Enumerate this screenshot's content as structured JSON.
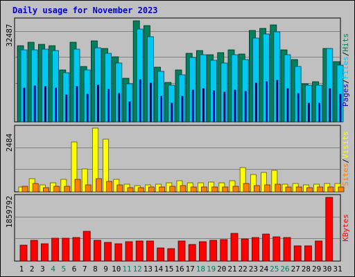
{
  "title": "Daily usage for November 2023",
  "colors": {
    "title": "#0000cc",
    "hits": "#00805c",
    "files": "#00c8f0",
    "pages": "#0000c8",
    "visits": "#ffff00",
    "sites": "#ff8000",
    "kbytes": "#ff0000",
    "weekend_label": "#00805c",
    "plot_bg": "#c0c0c0",
    "grid": "#808080"
  },
  "chart_data": {
    "type": "bar",
    "categories": [
      "1",
      "2",
      "3",
      "4",
      "5",
      "6",
      "7",
      "8",
      "9",
      "10",
      "11",
      "12",
      "13",
      "14",
      "15",
      "16",
      "17",
      "18",
      "19",
      "20",
      "21",
      "22",
      "23",
      "24",
      "25",
      "26",
      "27",
      "28",
      "29",
      "30",
      "31"
    ],
    "weekend_days": [
      "4",
      "5",
      "11",
      "12",
      "18",
      "19",
      "25",
      "26"
    ],
    "grid": true,
    "panels": [
      {
        "name": "hits-files-pages",
        "y_tick_label": "32487",
        "ylim": [
          0,
          39000
        ],
        "legend": [
          "Pages",
          "/",
          "Files",
          "/",
          "Hits"
        ],
        "legend_placement": "right",
        "series": [
          {
            "name": "Hits",
            "values": [
              29500,
              30600,
              29900,
              29300,
              20000,
              30800,
              21300,
              31200,
              28200,
              25000,
              16800,
              39000,
              37100,
              21200,
              15100,
              20000,
              26400,
              27500,
              25900,
              26600,
              27700,
              26300,
              35200,
              36100,
              37400,
              27700,
              24000,
              14600,
              15500,
              28400,
              23300
            ]
          },
          {
            "name": "Files",
            "values": [
              27700,
              27700,
              28100,
              27500,
              18900,
              28000,
              20000,
              28500,
              26500,
              22700,
              14600,
              35700,
              32900,
              19400,
              14200,
              18200,
              24800,
              25900,
              23900,
              22700,
              25800,
              24000,
              32200,
              33800,
              34700,
              25900,
              21300,
              14200,
              14100,
              28300,
              21800
            ]
          },
          {
            "name": "Pages",
            "values": [
              13100,
              14000,
              13500,
              13100,
              10400,
              13500,
              10600,
              14200,
              12600,
              11000,
              7800,
              16200,
              15000,
              9900,
              7300,
              9800,
              12300,
              12800,
              12100,
              11500,
              12200,
              11800,
              15000,
              15600,
              15900,
              12700,
              11000,
              7300,
              7100,
              12900,
              10800
            ]
          }
        ]
      },
      {
        "name": "visits-sites",
        "y_tick_label": "2484",
        "ylim": [
          0,
          2830
        ],
        "legend": [
          "Sites",
          "/",
          "Visits"
        ],
        "legend_placement": "right",
        "series": [
          {
            "name": "Visits",
            "values": [
              230,
              590,
              310,
              400,
              560,
              2200,
              1010,
              2840,
              2350,
              560,
              340,
              280,
              320,
              340,
              410,
              500,
              390,
              400,
              420,
              410,
              480,
              1080,
              760,
              860,
              960,
              340,
              380,
              310,
              340,
              380,
              360
            ]
          },
          {
            "name": "Sites",
            "values": [
              240,
              370,
              170,
              240,
              240,
              560,
              320,
              580,
              450,
              320,
              180,
              170,
              220,
              210,
              260,
              270,
              200,
              230,
              220,
              220,
              260,
              380,
              280,
              300,
              350,
              210,
              210,
              180,
              200,
              220,
              220
            ]
          }
        ]
      },
      {
        "name": "kbytes",
        "y_tick_label": "1859792",
        "ylim": [
          0,
          2020000
        ],
        "legend": [
          "KBytes"
        ],
        "legend_placement": "right",
        "series": [
          {
            "name": "KBytes",
            "values": [
              500000,
              650000,
              550000,
              720000,
              720000,
              750000,
              950000,
              650000,
              600000,
              550000,
              620000,
              640000,
              630000,
              420000,
              400000,
              630000,
              530000,
              610000,
              650000,
              680000,
              870000,
              700000,
              740000,
              860000,
              760000,
              750000,
              480000,
              480000,
              630000,
              2020000,
              0
            ]
          }
        ]
      }
    ]
  }
}
